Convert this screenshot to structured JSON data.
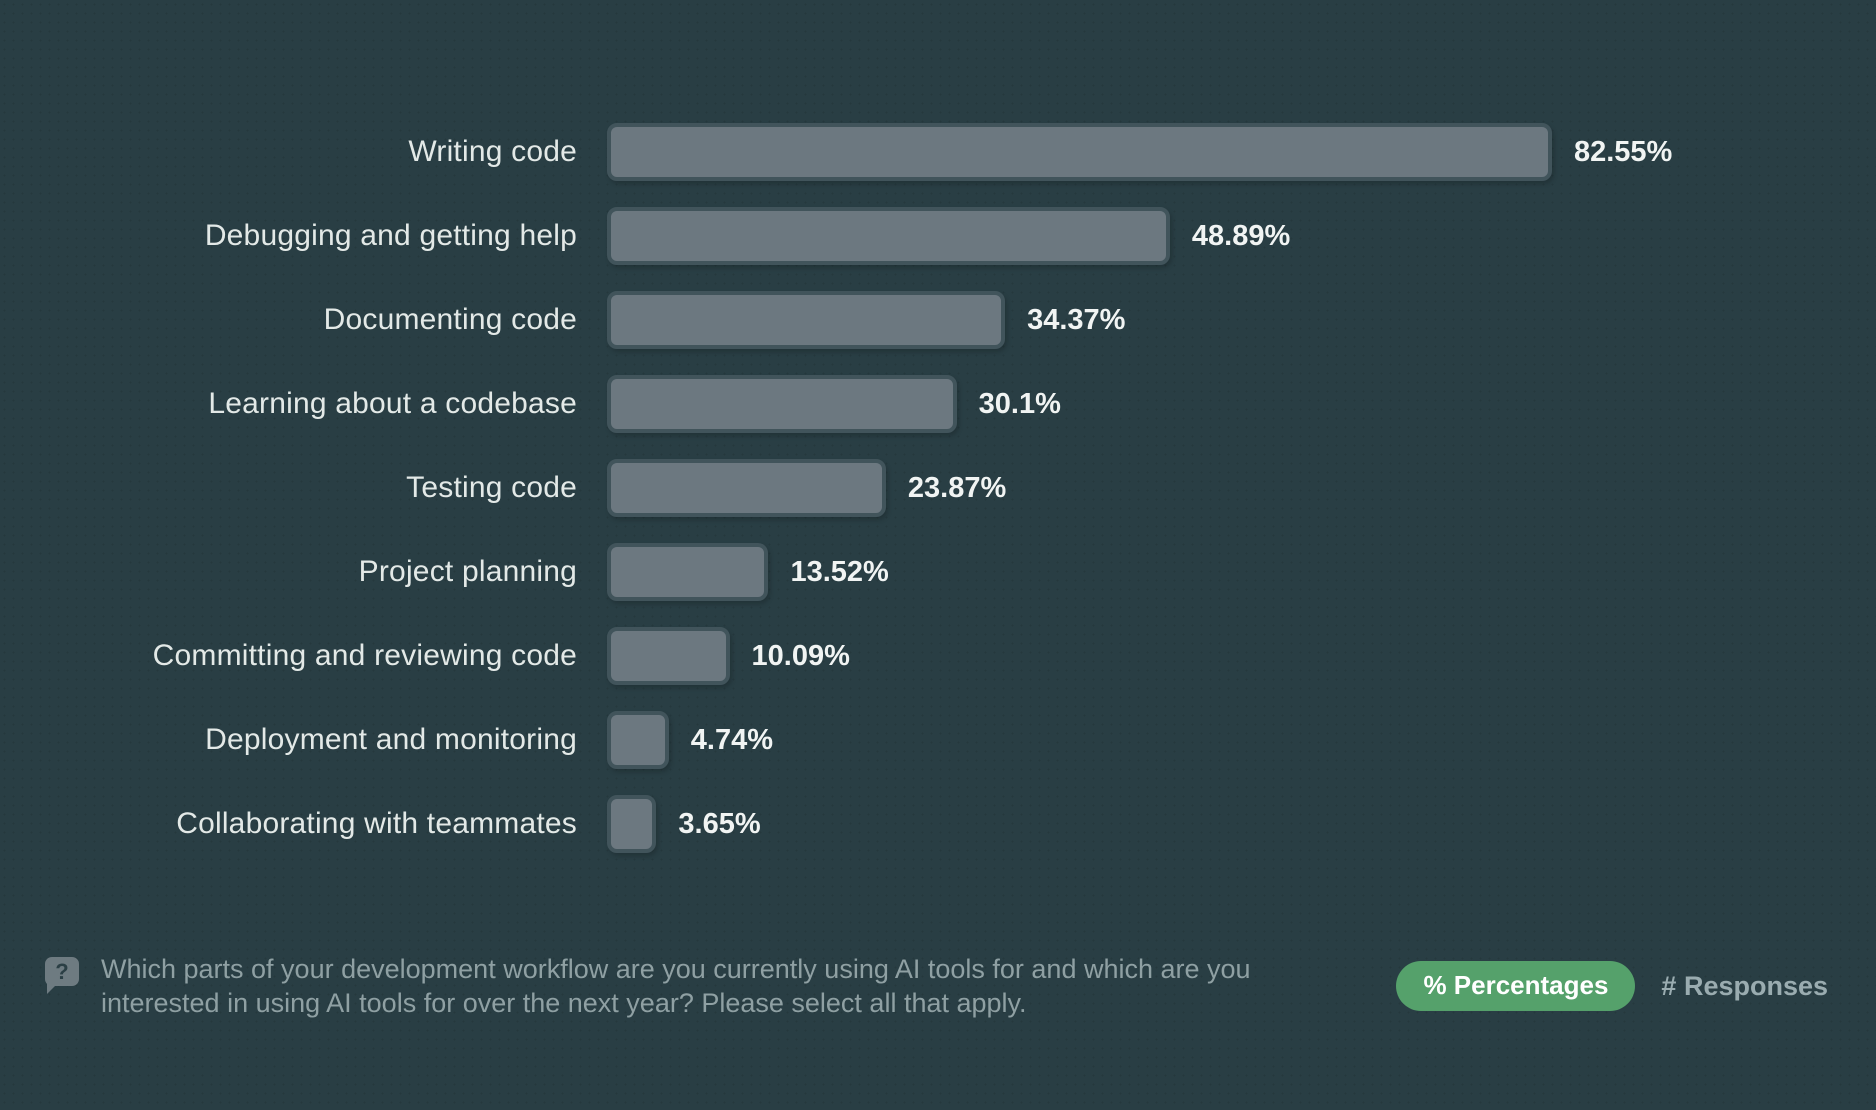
{
  "chart_data": {
    "type": "bar",
    "orientation": "horizontal",
    "title": "",
    "xlabel": "",
    "ylabel": "",
    "xlim": [
      0,
      100
    ],
    "grid": false,
    "legend": false,
    "categories": [
      "Writing code",
      "Debugging and getting help",
      "Documenting code",
      "Learning about a codebase",
      "Testing code",
      "Project planning",
      "Committing and reviewing code",
      "Deployment and monitoring",
      "Collaborating with teammates"
    ],
    "values": [
      82.55,
      48.89,
      34.37,
      30.1,
      23.87,
      13.52,
      10.09,
      4.74,
      3.65
    ],
    "value_labels": [
      "82.55%",
      "48.89%",
      "34.37%",
      "30.1%",
      "23.87%",
      "13.52%",
      "10.09%",
      "4.74%",
      "3.65%"
    ]
  },
  "footer": {
    "question": "Which parts of your development workflow are you currently using AI tools for and which are you interested in using AI tools for over the next year? Please select all that apply.",
    "toggle": {
      "percentages_label": "% Percentages",
      "responses_label": "# Responses",
      "active": "percentages"
    }
  },
  "icons": {
    "question_bubble_glyph": "?"
  },
  "colors": {
    "background": "#293E44",
    "bar_fill": "#6C7880",
    "bar_border": "#41545B",
    "label_text": "#E3E9E7",
    "value_text": "#F1F4F3",
    "question_text": "#8FA0A3",
    "toggle_active_bg": "#55A16B",
    "toggle_active_text": "#FFFFFF",
    "toggle_inactive_text": "#9AACB0",
    "icon_bg": "#6E7B81",
    "icon_glyph": "#2B3F45"
  }
}
